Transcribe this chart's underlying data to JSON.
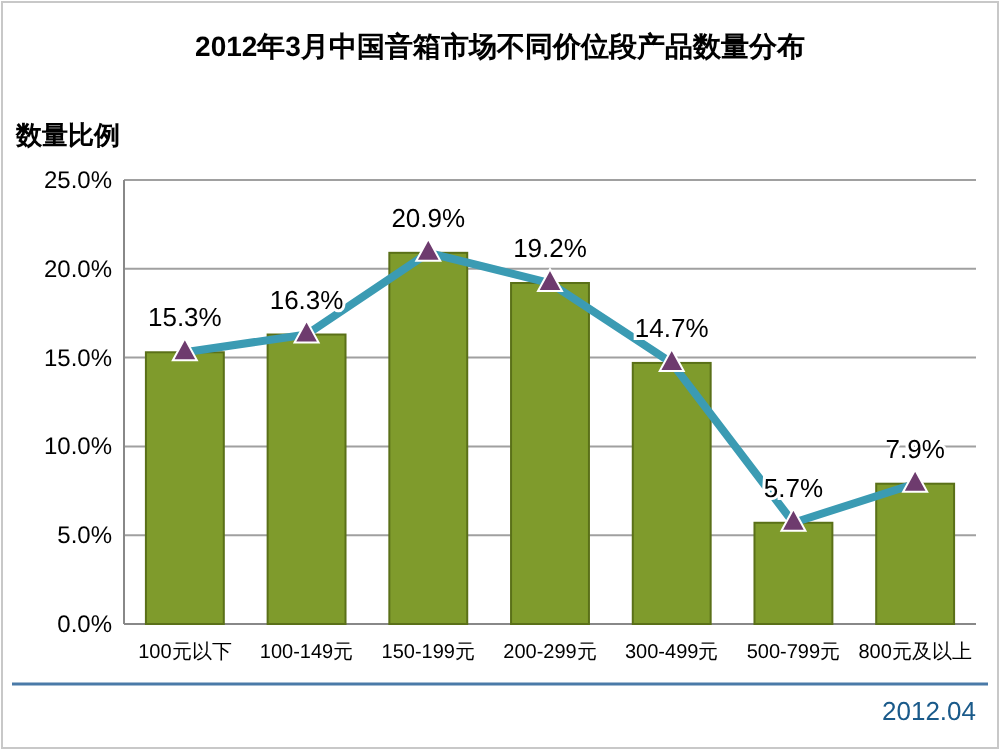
{
  "chart_data": {
    "type": "bar",
    "title": "2012年3月中国音箱市场不同价位段产品数量分布",
    "ylabel": "数量比例",
    "categories": [
      "100元以下",
      "100-149元",
      "150-199元",
      "200-299元",
      "300-499元",
      "500-799元",
      "800元及以上"
    ],
    "series": [
      {
        "color": "#7f9b2c",
        "values": [
          15.3,
          16.3,
          20.9,
          19.2,
          14.7,
          5.7,
          7.9
        ]
      },
      {
        "type": "line",
        "color": "#3b9bb3",
        "marker": "triangle",
        "values": [
          15.3,
          16.3,
          20.9,
          19.2,
          14.7,
          5.7,
          7.9
        ],
        "value_labels": [
          "15.3%",
          "16.3%",
          "20.9%",
          "19.2%",
          "14.7%",
          "5.7%",
          "7.9%"
        ]
      }
    ],
    "ylim": [
      0,
      25
    ],
    "yticks": [
      {
        "value": 0,
        "label": "0.0%"
      },
      {
        "value": 5,
        "label": "5.0%"
      },
      {
        "value": 10,
        "label": "10.0%"
      },
      {
        "value": 15,
        "label": "15.0%"
      },
      {
        "value": 20,
        "label": "20.0%"
      },
      {
        "value": 25,
        "label": "25.0%"
      }
    ],
    "grid": "y",
    "annotations": [
      "2012.04"
    ]
  }
}
